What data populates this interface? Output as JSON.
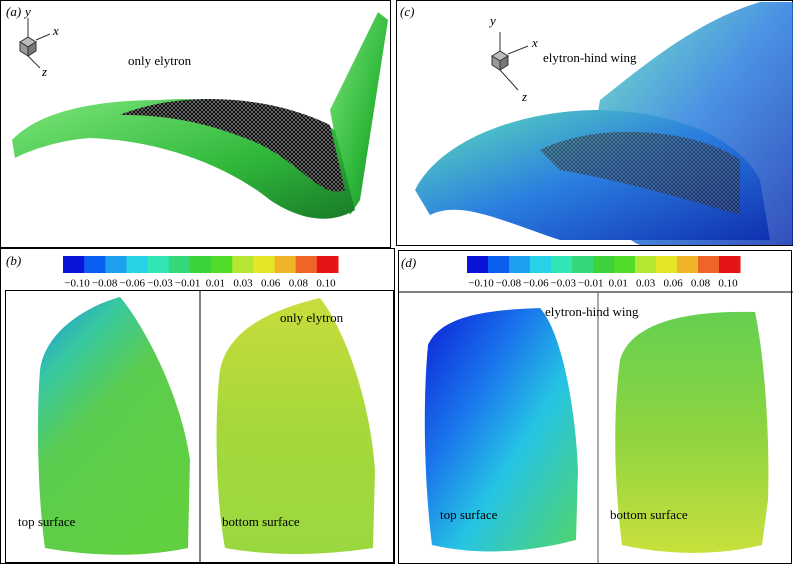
{
  "panels": [
    {
      "label": "(a)",
      "caption": "only elytron",
      "axes": [
        "y",
        "x",
        "z"
      ]
    },
    {
      "label": "(c)",
      "caption": "elytron-hind wing",
      "axes": [
        "y",
        "x",
        "z"
      ]
    },
    {
      "label": "(b)",
      "caption": "only elytron",
      "surfaces": [
        "top surface",
        "bottom surface"
      ]
    },
    {
      "label": "(d)",
      "caption": "elytron-hind wing",
      "surfaces": [
        "top surface",
        "bottom surface"
      ]
    }
  ],
  "colorbar": {
    "ticks": [
      "−0.10",
      "−0.08",
      "−0.06",
      "−0.03",
      "−0.01",
      "0.01",
      "0.03",
      "0.06",
      "0.08",
      "0.10"
    ],
    "colors": [
      "#0a14d8",
      "#0a5ef0",
      "#1ea0f0",
      "#28d2e6",
      "#30e6b4",
      "#34d878",
      "#3cd23c",
      "#50dc28",
      "#b4e632",
      "#e6e628",
      "#f0b428",
      "#f06428",
      "#e61414"
    ]
  }
}
